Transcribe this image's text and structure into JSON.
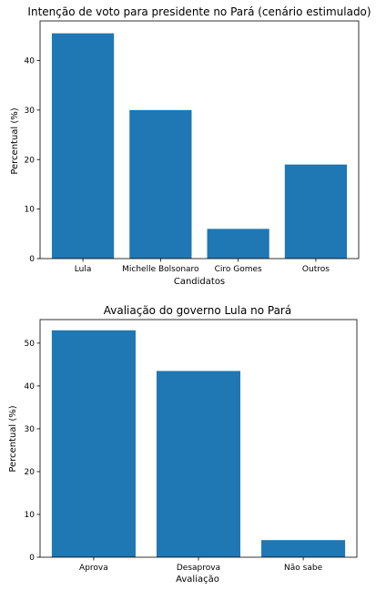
{
  "chart_data": [
    {
      "type": "bar",
      "title": "Intenção de voto para presidente no Pará (cenário estimulado)",
      "xlabel": "Candidatos",
      "ylabel": "Percentual (%)",
      "categories": [
        "Lula",
        "Michelle Bolsonaro",
        "Ciro Gomes",
        "Outros"
      ],
      "values": [
        45.5,
        30,
        6,
        19
      ],
      "ylim": [
        0,
        48
      ],
      "yticks": [
        0,
        10,
        20,
        30,
        40
      ],
      "color": "#1f77b4",
      "grid": false
    },
    {
      "type": "bar",
      "title": "Avaliação do governo Lula no Pará",
      "xlabel": "Avaliação",
      "ylabel": "Percentual (%)",
      "categories": [
        "Aprova",
        "Desaprova",
        "Não sabe"
      ],
      "values": [
        53,
        43.5,
        4
      ],
      "ylim": [
        0,
        55.5
      ],
      "yticks": [
        0,
        10,
        20,
        30,
        40,
        50
      ],
      "color": "#1f77b4",
      "grid": false
    }
  ]
}
